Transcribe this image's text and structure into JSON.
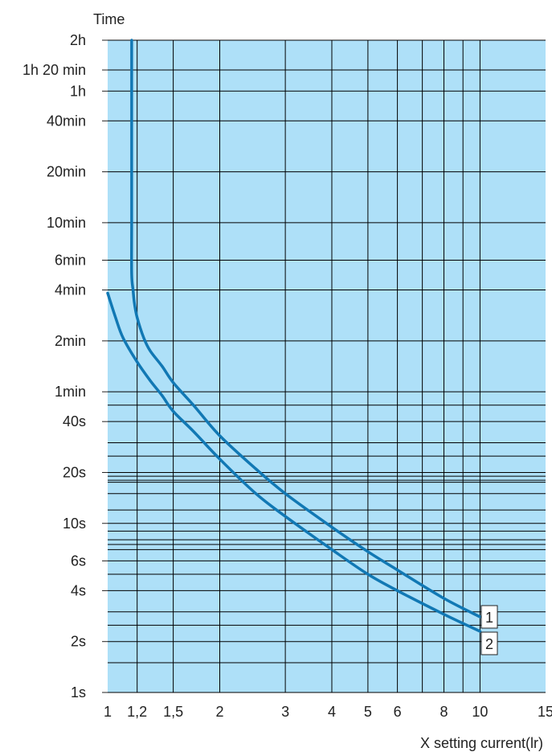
{
  "chart_data": {
    "type": "line",
    "title": "",
    "ylabel": "Time",
    "xlabel": "X setting current(lr)",
    "x_scale": "log",
    "y_scale": "log",
    "x_unit": "multiple of setting current",
    "y_unit": "seconds",
    "xlim": [
      1,
      15
    ],
    "ylim": [
      1,
      7200
    ],
    "grid": true,
    "plot_background": "#aee0f8",
    "line_color": "#1178b4",
    "grid_color": "#000000",
    "x_ticks": [
      {
        "value": 1,
        "label": "1"
      },
      {
        "value": 1.2,
        "label": "1,2"
      },
      {
        "value": 1.5,
        "label": "1,5"
      },
      {
        "value": 2,
        "label": "2"
      },
      {
        "value": 3,
        "label": "3"
      },
      {
        "value": 4,
        "label": "4"
      },
      {
        "value": 5,
        "label": "5"
      },
      {
        "value": 6,
        "label": "6"
      },
      {
        "value": 8,
        "label": "8"
      },
      {
        "value": 10,
        "label": "10"
      },
      {
        "value": 15,
        "label": "15"
      }
    ],
    "x_gridlines": [
      1.2,
      1.5,
      2,
      3,
      4,
      5,
      6,
      7,
      8,
      9,
      10
    ],
    "y_ticks": [
      {
        "value": 1,
        "label": "1s"
      },
      {
        "value": 2,
        "label": "2s"
      },
      {
        "value": 4,
        "label": "4s"
      },
      {
        "value": 6,
        "label": "6s"
      },
      {
        "value": 10,
        "label": "10s"
      },
      {
        "value": 20,
        "label": "20s"
      },
      {
        "value": 40,
        "label": "40s"
      },
      {
        "value": 60,
        "label": "1min"
      },
      {
        "value": 120,
        "label": "2min"
      },
      {
        "value": 240,
        "label": "4min"
      },
      {
        "value": 360,
        "label": "6min"
      },
      {
        "value": 600,
        "label": "10min"
      },
      {
        "value": 1200,
        "label": "20min"
      },
      {
        "value": 2400,
        "label": "40min"
      },
      {
        "value": 3600,
        "label": "1h"
      },
      {
        "value": 4800,
        "label": "1h 20 min"
      },
      {
        "value": 7200,
        "label": "2h"
      }
    ],
    "y_gridlines": [
      1,
      1.5,
      2,
      2.5,
      3,
      4,
      5,
      6,
      7,
      7.5,
      8,
      9,
      10,
      12,
      15,
      17.5,
      18,
      19,
      20,
      25,
      30,
      40,
      50,
      60,
      120,
      240,
      360,
      600,
      1200,
      2400,
      3600,
      4800,
      7200
    ],
    "series": [
      {
        "name": "1",
        "points": [
          [
            1.16,
            7200
          ],
          [
            1.16,
            3600
          ],
          [
            1.16,
            1200
          ],
          [
            1.16,
            600
          ],
          [
            1.16,
            300
          ],
          [
            1.17,
            240
          ],
          [
            1.18,
            200
          ],
          [
            1.2,
            165
          ],
          [
            1.25,
            125
          ],
          [
            1.3,
            105
          ],
          [
            1.4,
            85
          ],
          [
            1.5,
            68
          ],
          [
            1.7,
            50
          ],
          [
            2.0,
            33
          ],
          [
            2.5,
            21
          ],
          [
            3.0,
            15
          ],
          [
            4.0,
            9.5
          ],
          [
            5.0,
            6.8
          ],
          [
            6.0,
            5.3
          ],
          [
            8.0,
            3.6
          ],
          [
            10.0,
            2.8
          ]
        ]
      },
      {
        "name": "2",
        "points": [
          [
            1.0,
            230
          ],
          [
            1.05,
            165
          ],
          [
            1.1,
            125
          ],
          [
            1.2,
            90
          ],
          [
            1.3,
            70
          ],
          [
            1.4,
            57
          ],
          [
            1.5,
            46
          ],
          [
            1.7,
            35
          ],
          [
            2.0,
            24
          ],
          [
            2.5,
            15
          ],
          [
            3.0,
            11
          ],
          [
            4.0,
            7
          ],
          [
            5.0,
            5
          ],
          [
            6.0,
            4
          ],
          [
            8.0,
            2.9
          ],
          [
            10.0,
            2.3
          ]
        ]
      }
    ]
  }
}
